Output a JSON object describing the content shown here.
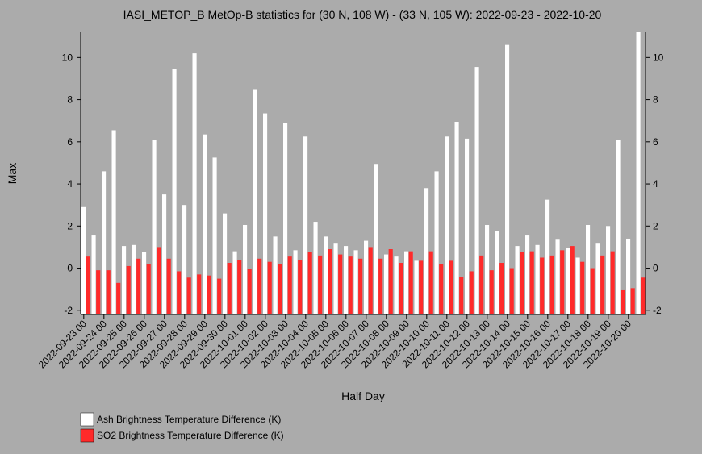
{
  "chart_data": {
    "type": "bar",
    "title": "IASI_METOP_B MetOp-B statistics for (30 N, 108 W) - (33 N, 105 W): 2022-09-23 - 2022-10-20",
    "xlabel": "Half Day",
    "ylabel": "Max",
    "ylim": [
      -2.2,
      11.2
    ],
    "yticks": [
      -2,
      0,
      2,
      4,
      6,
      8,
      10
    ],
    "grid": false,
    "legend_position": "bottom-left",
    "categories": [
      "2022-09-23 00",
      "2022-09-23 12",
      "2022-09-24 00",
      "2022-09-24 12",
      "2022-09-25 00",
      "2022-09-25 12",
      "2022-09-26 00",
      "2022-09-26 12",
      "2022-09-27 00",
      "2022-09-27 12",
      "2022-09-28 00",
      "2022-09-28 12",
      "2022-09-29 00",
      "2022-09-29 12",
      "2022-09-30 00",
      "2022-09-30 12",
      "2022-10-01 00",
      "2022-10-01 12",
      "2022-10-02 00",
      "2022-10-02 12",
      "2022-10-03 00",
      "2022-10-03 12",
      "2022-10-04 00",
      "2022-10-04 12",
      "2022-10-05 00",
      "2022-10-05 12",
      "2022-10-06 00",
      "2022-10-06 12",
      "2022-10-07 00",
      "2022-10-07 12",
      "2022-10-08 00",
      "2022-10-08 12",
      "2022-10-09 00",
      "2022-10-09 12",
      "2022-10-10 00",
      "2022-10-10 12",
      "2022-10-11 00",
      "2022-10-11 12",
      "2022-10-12 00",
      "2022-10-12 12",
      "2022-10-13 00",
      "2022-10-13 12",
      "2022-10-14 00",
      "2022-10-14 12",
      "2022-10-15 00",
      "2022-10-15 12",
      "2022-10-16 00",
      "2022-10-16 12",
      "2022-10-17 00",
      "2022-10-17 12",
      "2022-10-18 00",
      "2022-10-18 12",
      "2022-10-19 00",
      "2022-10-19 12",
      "2022-10-20 00",
      "2022-10-20 12"
    ],
    "xtick_labels": [
      "2022-09-23 00",
      "2022-09-24 00",
      "2022-09-25 00",
      "2022-09-26 00",
      "2022-09-27 00",
      "2022-09-28 00",
      "2022-09-29 00",
      "2022-09-30 00",
      "2022-10-01 00",
      "2022-10-02 00",
      "2022-10-03 00",
      "2022-10-04 00",
      "2022-10-05 00",
      "2022-10-06 00",
      "2022-10-07 00",
      "2022-10-08 00",
      "2022-10-09 00",
      "2022-10-10 00",
      "2022-10-11 00",
      "2022-10-12 00",
      "2022-10-13 00",
      "2022-10-14 00",
      "2022-10-15 00",
      "2022-10-16 00",
      "2022-10-17 00",
      "2022-10-18 00",
      "2022-10-19 00",
      "2022-10-20 00"
    ],
    "series": [
      {
        "name": "Ash Brightness Temperature Difference (K)",
        "color": "#ffffff",
        "values": [
          2.9,
          1.55,
          4.6,
          6.55,
          1.05,
          1.1,
          0.75,
          6.1,
          3.5,
          9.45,
          3.0,
          10.2,
          6.35,
          5.25,
          2.6,
          0.8,
          2.05,
          8.5,
          7.35,
          1.5,
          6.9,
          0.85,
          6.25,
          2.2,
          1.5,
          1.2,
          1.05,
          0.85,
          1.3,
          4.95,
          0.65,
          0.55,
          0.8,
          0.35,
          3.8,
          4.6,
          6.25,
          6.95,
          6.15,
          9.55,
          2.05,
          1.75,
          10.6,
          1.05,
          1.55,
          1.1,
          3.25,
          1.35,
          0.95,
          0.5,
          2.05,
          1.2,
          2.0,
          6.1,
          1.4,
          11.2
        ]
      },
      {
        "name": "SO2 Brightness Temperature Difference (K)",
        "color": "#ff2a2a",
        "values": [
          0.55,
          -0.1,
          -0.1,
          -0.7,
          0.1,
          0.45,
          0.2,
          1.0,
          0.45,
          -0.15,
          -0.45,
          -0.3,
          -0.35,
          -0.5,
          0.25,
          0.4,
          -0.05,
          0.45,
          0.3,
          0.2,
          0.55,
          0.4,
          0.75,
          0.6,
          0.9,
          0.65,
          0.55,
          0.45,
          1.0,
          0.45,
          0.9,
          0.25,
          0.8,
          0.35,
          0.8,
          0.2,
          0.35,
          -0.4,
          -0.15,
          0.6,
          -0.1,
          0.25,
          0.0,
          0.75,
          0.8,
          0.5,
          0.6,
          0.85,
          1.05,
          0.3,
          0.0,
          0.6,
          0.8,
          -1.05,
          -0.95,
          -0.45
        ]
      }
    ]
  }
}
